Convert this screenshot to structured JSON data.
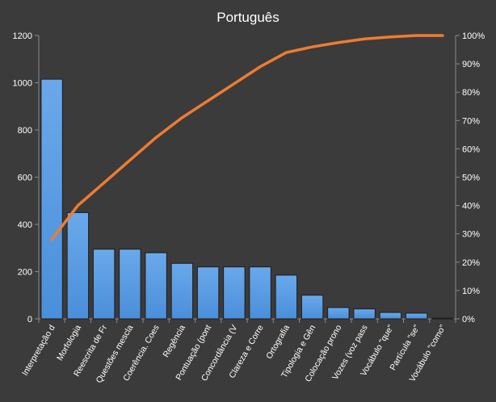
{
  "chart_data": {
    "type": "bar",
    "title": "Português",
    "categories": [
      "Interpretação d",
      "Morfologia",
      "Reescrita de Fr",
      "Questões mescla",
      "Coerência. Coes",
      "Regência",
      "Pontuação (pont",
      "Concordância (V",
      "Clareza e Corre",
      "Ortografia",
      "Tipologia e Gên",
      "Colocação prono",
      "Vozes (voz pass",
      "Vocábulo \"que\"",
      "Partícula \"se\"",
      "Vocábulo \"como\""
    ],
    "series": [
      {
        "type": "bar",
        "axis": "left",
        "values": [
          1015,
          450,
          295,
          295,
          280,
          235,
          220,
          220,
          220,
          185,
          100,
          48,
          42,
          27,
          24,
          3
        ]
      },
      {
        "type": "line",
        "axis": "right",
        "values": [
          0.28,
          0.4,
          0.48,
          0.56,
          0.64,
          0.71,
          0.77,
          0.83,
          0.89,
          0.94,
          0.96,
          0.975,
          0.988,
          0.995,
          1.0,
          1.0
        ]
      }
    ],
    "y_left": {
      "min": 0,
      "max": 1200,
      "ticks": [
        "0",
        "200",
        "400",
        "600",
        "800",
        "1000",
        "1200"
      ]
    },
    "y_right": {
      "min": 0,
      "max": 1,
      "ticks": [
        "0%",
        "10%",
        "20%",
        "30%",
        "40%",
        "50%",
        "60%",
        "70%",
        "80%",
        "90%",
        "100%"
      ]
    },
    "grid": false,
    "legend": "none",
    "colors": {
      "background": "#3b3b3b",
      "bar_fill": "#5a9be0",
      "bar_stroke": "#1d1d1d",
      "line": "#ed7d31",
      "text": "#ffffff",
      "axis": "#8a8a8a"
    }
  }
}
